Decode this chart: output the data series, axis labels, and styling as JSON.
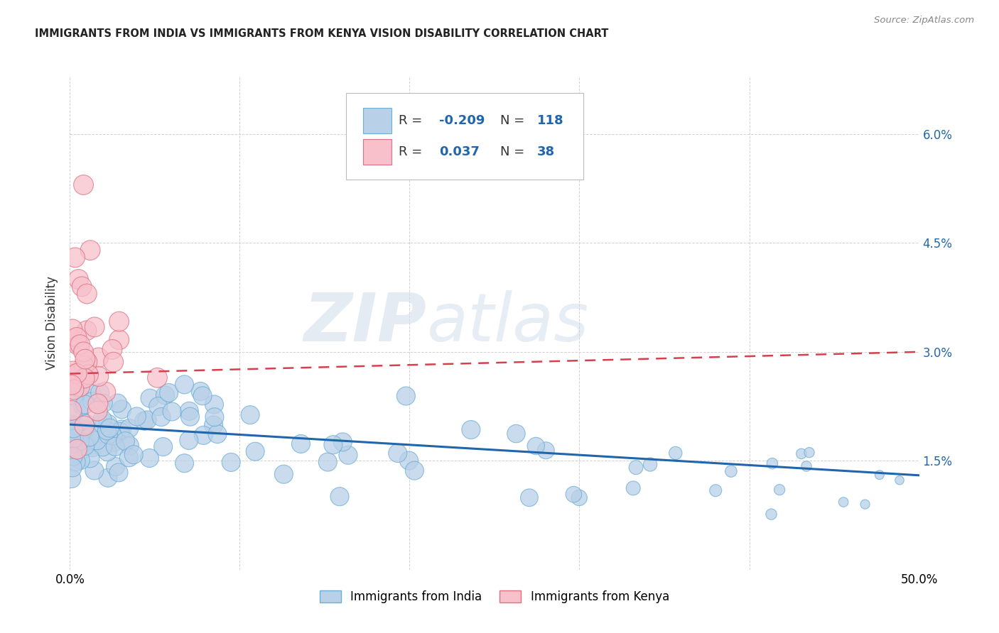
{
  "title": "IMMIGRANTS FROM INDIA VS IMMIGRANTS FROM KENYA VISION DISABILITY CORRELATION CHART",
  "source": "Source: ZipAtlas.com",
  "ylabel": "Vision Disability",
  "xlim": [
    0.0,
    0.5
  ],
  "ylim": [
    0.0,
    0.068
  ],
  "yticks": [
    0.0,
    0.015,
    0.03,
    0.045,
    0.06
  ],
  "ytick_labels_right": [
    "",
    "1.5%",
    "3.0%",
    "4.5%",
    "6.0%"
  ],
  "xticks": [
    0.0,
    0.1,
    0.2,
    0.3,
    0.4,
    0.5
  ],
  "xtick_labels": [
    "0.0%",
    "",
    "",
    "",
    "",
    "50.0%"
  ],
  "legend_india_R": "-0.209",
  "legend_india_N": "118",
  "legend_kenya_R": "0.037",
  "legend_kenya_N": "38",
  "india_fill": "#b8d0e8",
  "india_edge": "#6baed6",
  "kenya_fill": "#f7c0cb",
  "kenya_edge": "#e07080",
  "trend_india_color": "#2166ac",
  "trend_kenya_color": "#d6404e",
  "background_color": "#ffffff",
  "grid_color": "#cccccc",
  "watermark_zip": "ZIP",
  "watermark_atlas": "atlas",
  "legend_text_color": "#2166ac",
  "title_color": "#222222",
  "source_color": "#888888"
}
